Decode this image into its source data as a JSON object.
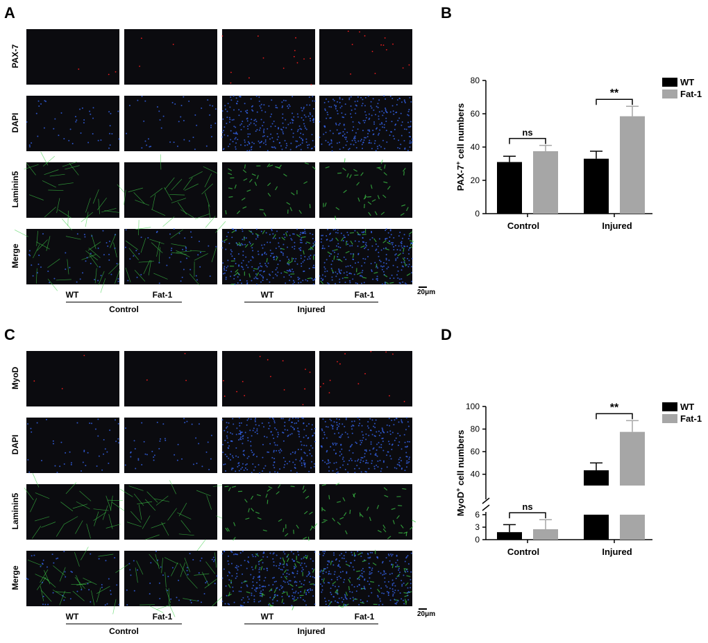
{
  "panels": {
    "a": "A",
    "b": "B",
    "c": "C",
    "d": "D"
  },
  "figure_a": {
    "rows": [
      "PAX-7",
      "DAPI",
      "Laminin5",
      "Merge"
    ],
    "cols": [
      "WT",
      "Fat-1",
      "WT",
      "Fat-1"
    ],
    "groups": [
      "Control",
      "Injured"
    ],
    "scale": "20μm",
    "colors": {
      "PAX-7": "#ff2020",
      "DAPI": "#3a6cff",
      "Laminin5": "#3fd04a",
      "Merge": "#3a6cff"
    }
  },
  "figure_c": {
    "rows": [
      "MyoD",
      "DAPI",
      "Laminin5",
      "Merge"
    ],
    "cols": [
      "WT",
      "Fat-1",
      "WT",
      "Fat-1"
    ],
    "groups": [
      "Control",
      "Injured"
    ],
    "scale": "20μm",
    "colors": {
      "MyoD": "#ff2020",
      "DAPI": "#3a6cff",
      "Laminin5": "#3fd04a",
      "Merge": "#3a6cff"
    }
  },
  "chart_data": [
    {
      "type": "bar",
      "ylabel_main": "PAX-7",
      "ylabel_sup": "+",
      "ylabel_rest": " cell numbers",
      "categories": [
        "Control",
        "Injured"
      ],
      "series": [
        {
          "name": "WT",
          "values": [
            31,
            33
          ],
          "errors": [
            3.5,
            4.5
          ],
          "color": "#000000"
        },
        {
          "name": "Fat-1",
          "values": [
            37.5,
            58.5
          ],
          "errors": [
            3.5,
            6
          ],
          "color": "#a6a6a6"
        }
      ],
      "ylim": [
        0,
        80
      ],
      "yticks": [
        0,
        20,
        40,
        60,
        80
      ],
      "annotations": [
        {
          "group": "Control",
          "text": "ns"
        },
        {
          "group": "Injured",
          "text": "**"
        }
      ],
      "legend_position": "top-right"
    },
    {
      "type": "bar",
      "ylabel_main": "MyoD",
      "ylabel_sup": "+",
      "ylabel_rest": " cell numbers",
      "categories": [
        "Control",
        "Injured"
      ],
      "series": [
        {
          "name": "WT",
          "values": [
            1.8,
            43.5
          ],
          "errors": [
            1.8,
            6.5
          ],
          "color": "#000000"
        },
        {
          "name": "Fat-1",
          "values": [
            2.5,
            77.5
          ],
          "errors": [
            2.3,
            10
          ],
          "color": "#a6a6a6"
        }
      ],
      "yticks_lower": [
        0,
        3,
        6
      ],
      "yticks_upper": [
        40,
        60,
        80,
        100
      ],
      "broken_axis": true,
      "annotations": [
        {
          "group": "Control",
          "text": "ns"
        },
        {
          "group": "Injured",
          "text": "**"
        }
      ],
      "legend_position": "top-right"
    }
  ]
}
